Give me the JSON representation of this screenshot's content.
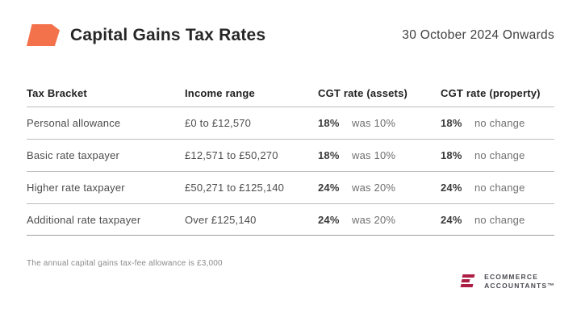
{
  "header": {
    "title": "Capital Gains Tax Rates",
    "date": "30 October 2024 Onwards"
  },
  "table": {
    "columns": {
      "bracket": "Tax Bracket",
      "income": "Income range",
      "assets": "CGT rate (assets)",
      "property": "CGT rate (property)"
    },
    "rows": [
      {
        "bracket": "Personal allowance",
        "income": "£0 to £12,570",
        "assets_rate": "18%",
        "assets_note": "was 10%",
        "property_rate": "18%",
        "property_note": "no change"
      },
      {
        "bracket": "Basic rate taxpayer",
        "income": "£12,571 to £50,270",
        "assets_rate": "18%",
        "assets_note": "was 10%",
        "property_rate": "18%",
        "property_note": "no change"
      },
      {
        "bracket": "Higher rate taxpayer",
        "income": "£50,271 to £125,140",
        "assets_rate": "24%",
        "assets_note": "was 20%",
        "property_rate": "24%",
        "property_note": "no change"
      },
      {
        "bracket": "Additional rate taxpayer",
        "income": "Over £125,140",
        "assets_rate": "24%",
        "assets_note": "was 20%",
        "property_rate": "24%",
        "property_note": "no change"
      }
    ]
  },
  "footer": {
    "note": "The annual capital gains tax-fee allowance is £3,000",
    "logo_line1": "ECOMMERCE",
    "logo_line2": "ACCOUNTANTS™"
  },
  "colors": {
    "accent_orange": "#F3714B",
    "brand_crimson": "#AD1E45"
  },
  "chart_data": {
    "type": "table",
    "title": "Capital Gains Tax Rates",
    "subtitle": "30 October 2024 Onwards",
    "columns": [
      "Tax Bracket",
      "Income range",
      "CGT rate (assets)",
      "CGT rate (property)"
    ],
    "rows": [
      [
        "Personal allowance",
        "£0 to £12,570",
        "18% (was 10%)",
        "18% (no change)"
      ],
      [
        "Basic rate taxpayer",
        "£12,571 to £50,270",
        "18% (was 10%)",
        "18% (no change)"
      ],
      [
        "Higher rate taxpayer",
        "£50,271 to £125,140",
        "24% (was 20%)",
        "24% (no change)"
      ],
      [
        "Additional rate taxpayer",
        "Over £125,140",
        "24% (was 20%)",
        "24% (no change)"
      ]
    ]
  }
}
